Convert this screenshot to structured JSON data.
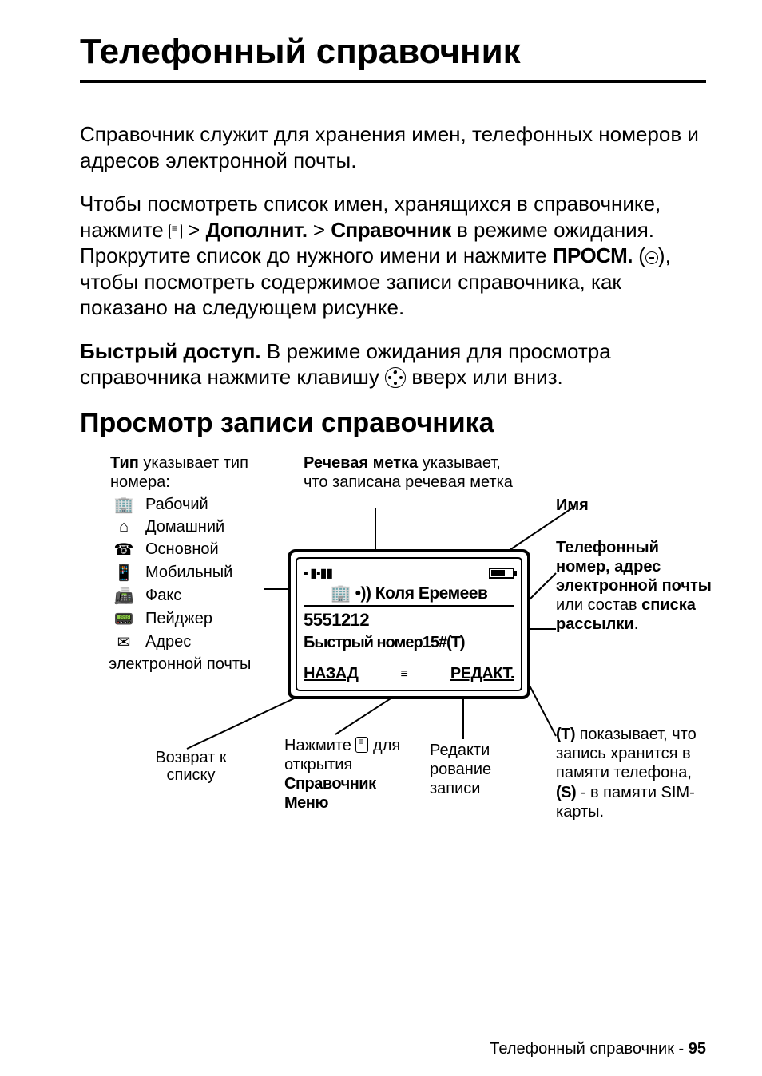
{
  "page_title": "Телефонный справочник",
  "intro": "Справочник служит для хранения имен, телефонных номеров и адресов электронной почты.",
  "para2_a": "Чтобы посмотреть список имен, хранящихся в справочнике, нажмите ",
  "para2_menu1": "Дополнит.",
  "para2_menu2": "Справочник",
  "para2_b": " в режиме ожидания. Прокрутите список до нужного имени и нажмите ",
  "para2_prosm": "ПРОСМ.",
  "para2_c": ", чтобы посмотреть содержимое записи справочника, как показано на следующем рисунке.",
  "quick_label": "Быстрый доступ.",
  "quick_text_a": " В режиме ожидания для просмотра справочника нажмите клавишу ",
  "quick_text_b": " вверх или вниз.",
  "section_title": "Просмотр записи справочника",
  "type_head_bold": "Тип",
  "type_head_rest": " указывает тип номера:",
  "types": [
    {
      "icon": "🏢",
      "label": "Рабочий"
    },
    {
      "icon": "⌂",
      "label": "Домашний"
    },
    {
      "icon": "☎",
      "label": "Основной"
    },
    {
      "icon": "📱",
      "label": "Мобильный"
    },
    {
      "icon": "📠",
      "label": "Факс"
    },
    {
      "icon": "📟",
      "label": "Пейджер"
    },
    {
      "icon": "✉",
      "label": "Адрес"
    }
  ],
  "type_tail": "электронной почты",
  "voice_bold": "Речевая метка",
  "voice_rest": " указывает, что записана речевая метка",
  "name_label": "Имя",
  "right_desc_html": "Телефонный номер, адрес электронной почты",
  "right_desc_mid": " или состав ",
  "right_desc_bold2": "списка рассылки",
  "phone": {
    "name": "Коля Еремеев",
    "number": "5551212",
    "speed": "Быстрый номер15#(T)",
    "sk_left": "НАЗАД",
    "sk_right": "РЕДАКТ."
  },
  "back_label": "Возврат к списку",
  "press_a": "Нажмите ",
  "press_b": " для открытия",
  "press_menu1": "Справочник",
  "press_menu2": "Меню",
  "edit_label": "Редакти рование записи",
  "t_block_a": " показывает, что запись хранится в памяти телефона, ",
  "t_block_T": "(T)",
  "t_block_S": "(S)",
  "t_block_b": " - в памяти SIM-карты.",
  "footer_text": "Телефонный справочник",
  "footer_page": "95"
}
